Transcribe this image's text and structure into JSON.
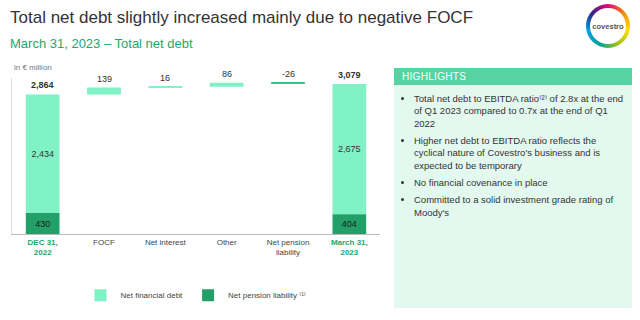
{
  "chart_data": {
    "type": "waterfall",
    "title": "Total net debt slightly increased mainly due to negative FOCF",
    "subtitle": "March 31, 2023 – Total net debt",
    "y_label": "in € million",
    "categories": [
      "DEC 31, 2022",
      "FOCF",
      "Net interest",
      "Other",
      "Net pension liability",
      "March 31, 2023"
    ],
    "series": [
      {
        "name": "Net financial debt",
        "color": "#80f2c6",
        "values": [
          2434,
          null,
          null,
          null,
          null,
          2675
        ],
        "value_labels": [
          "2,434",
          null,
          null,
          null,
          null,
          "2,675"
        ]
      },
      {
        "name": "Net pension liability ⁽¹⁾",
        "color": "#23a067",
        "values": [
          430,
          null,
          null,
          null,
          null,
          404
        ]
      }
    ],
    "steps": {
      "values": [
        null,
        139,
        16,
        86,
        -26,
        null
      ],
      "colors": [
        null,
        "#80f2c6",
        "#80f2c6",
        "#80f2c6",
        "#3cbf88",
        null
      ]
    },
    "totals": {
      "values": [
        2864,
        null,
        null,
        null,
        null,
        3079
      ],
      "value_labels": [
        "2,864",
        null,
        null,
        null,
        null,
        "3,079"
      ]
    },
    "ylim": [
      0,
      3200
    ],
    "yticks": [],
    "tick_labels": "x",
    "grid": false,
    "data_labels": true,
    "stacked": true,
    "legend": "bottom"
  },
  "logo": "covestro",
  "highlights": {
    "title": "HIGHLIGHTS",
    "items": [
      "Total net debt to EBITDA ratio⁽²⁾ of 2.8x at the end of Q1 2023 compared to 0.7x at the end of Q1 2022",
      "Higher net debt to EBITDA ratio reflects the cyclical nature of Covestro's business and is expected to be temporary",
      "No financial covenance in place",
      "Committed to a solid investment grade rating of Moody's"
    ]
  }
}
